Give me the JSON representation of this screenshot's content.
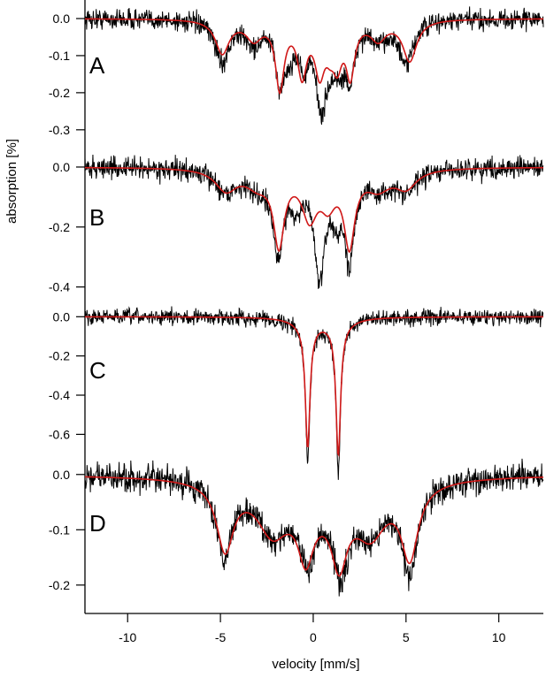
{
  "chart_data": {
    "type": "line",
    "xlabel": "velocity [mm/s]",
    "ylabel": "absorption [%]",
    "xlim": [
      -12.3,
      12.4
    ],
    "xticks": [
      -10,
      -5,
      0,
      5,
      10
    ],
    "xtick_labels": [
      "-10",
      "-5",
      "0",
      "5",
      "10"
    ],
    "grid": false,
    "colors": {
      "data": "#000000",
      "fit": "#d01818"
    },
    "panels": [
      {
        "label": "A",
        "ylim": [
          -0.36,
          0.05
        ],
        "yticks": [
          0.0,
          -0.1,
          -0.2,
          -0.3
        ],
        "ytick_labels": [
          "0.0",
          "-0.1",
          "-0.2",
          "-0.3"
        ],
        "noise": 0.02,
        "fit_lines": [
          {
            "c": -4.9,
            "w": 0.45,
            "d": 0.09
          },
          {
            "c": -3.2,
            "w": 0.5,
            "d": 0.05
          },
          {
            "c": -1.8,
            "w": 0.28,
            "d": 0.18
          },
          {
            "c": -0.6,
            "w": 0.3,
            "d": 0.14
          },
          {
            "c": 0.35,
            "w": 0.32,
            "d": 0.13
          },
          {
            "c": 0.9,
            "w": 0.3,
            "d": 0.05
          },
          {
            "c": 1.3,
            "w": 0.3,
            "d": 0.1
          },
          {
            "c": 2.0,
            "w": 0.28,
            "d": 0.14
          },
          {
            "c": 3.5,
            "w": 0.5,
            "d": 0.05
          },
          {
            "c": 5.2,
            "w": 0.45,
            "d": 0.11
          }
        ],
        "data_lines": [
          {
            "c": -4.9,
            "w": 0.45,
            "d": 0.11
          },
          {
            "c": -3.2,
            "w": 0.5,
            "d": 0.06
          },
          {
            "c": -1.8,
            "w": 0.28,
            "d": 0.15
          },
          {
            "c": -1.3,
            "w": 0.35,
            "d": 0.07
          },
          {
            "c": -0.5,
            "w": 0.32,
            "d": 0.1
          },
          {
            "c": 0.45,
            "w": 0.35,
            "d": 0.22
          },
          {
            "c": 1.0,
            "w": 0.3,
            "d": 0.06
          },
          {
            "c": 1.45,
            "w": 0.3,
            "d": 0.09
          },
          {
            "c": 2.0,
            "w": 0.28,
            "d": 0.14
          },
          {
            "c": 3.5,
            "w": 0.5,
            "d": 0.05
          },
          {
            "c": 5.0,
            "w": 0.45,
            "d": 0.12
          }
        ]
      },
      {
        "label": "B",
        "ylim": [
          -0.46,
          0.05
        ],
        "yticks": [
          0.0,
          -0.2,
          -0.4
        ],
        "ytick_labels": [
          "0.0",
          "-0.2",
          "-0.4"
        ],
        "noise": 0.025,
        "fit_lines": [
          {
            "c": -4.7,
            "w": 0.7,
            "d": 0.07
          },
          {
            "c": -3.0,
            "w": 0.8,
            "d": 0.05
          },
          {
            "c": -1.85,
            "w": 0.35,
            "d": 0.24
          },
          {
            "c": -0.2,
            "w": 0.5,
            "d": 0.15
          },
          {
            "c": 0.8,
            "w": 0.5,
            "d": 0.1
          },
          {
            "c": 1.95,
            "w": 0.35,
            "d": 0.24
          },
          {
            "c": 3.5,
            "w": 0.8,
            "d": 0.06
          },
          {
            "c": 5.0,
            "w": 0.7,
            "d": 0.06
          }
        ],
        "data_lines": [
          {
            "c": -4.7,
            "w": 0.7,
            "d": 0.07
          },
          {
            "c": -3.0,
            "w": 0.8,
            "d": 0.05
          },
          {
            "c": -1.9,
            "w": 0.32,
            "d": 0.27
          },
          {
            "c": -0.9,
            "w": 0.4,
            "d": 0.1
          },
          {
            "c": 0.35,
            "w": 0.35,
            "d": 0.34
          },
          {
            "c": 1.3,
            "w": 0.35,
            "d": 0.12
          },
          {
            "c": 1.95,
            "w": 0.3,
            "d": 0.27
          },
          {
            "c": 3.5,
            "w": 0.8,
            "d": 0.06
          },
          {
            "c": 5.0,
            "w": 0.7,
            "d": 0.07
          }
        ]
      },
      {
        "label": "C",
        "ylim": [
          -0.72,
          0.06
        ],
        "yticks": [
          0.0,
          -0.2,
          -0.4,
          -0.6
        ],
        "ytick_labels": [
          "0.0",
          "-0.2",
          "-0.4",
          "-0.6"
        ],
        "noise": 0.028,
        "fit_lines": [
          {
            "c": -0.3,
            "w": 0.15,
            "d": 0.62
          },
          {
            "c": 1.35,
            "w": 0.15,
            "d": 0.66
          },
          {
            "c": -0.3,
            "w": 0.8,
            "d": 0.04
          },
          {
            "c": 1.35,
            "w": 0.8,
            "d": 0.04
          }
        ],
        "data_lines": [
          {
            "c": -0.3,
            "w": 0.14,
            "d": 0.68
          },
          {
            "c": 1.35,
            "w": 0.14,
            "d": 0.72
          },
          {
            "c": -0.3,
            "w": 0.8,
            "d": 0.05
          },
          {
            "c": 1.35,
            "w": 0.8,
            "d": 0.05
          }
        ]
      },
      {
        "label": "D",
        "ylim": [
          -0.245,
          0.03
        ],
        "yticks": [
          0.0,
          -0.1,
          -0.2
        ],
        "ytick_labels": [
          "0.0",
          "-0.1",
          "-0.2"
        ],
        "noise": 0.018,
        "fit_lines": [
          {
            "c": -4.75,
            "w": 0.55,
            "d": 0.12
          },
          {
            "c": -2.2,
            "w": 1.0,
            "d": 0.08
          },
          {
            "c": -0.4,
            "w": 0.5,
            "d": 0.1
          },
          {
            "c": 1.4,
            "w": 0.5,
            "d": 0.11
          },
          {
            "c": 3.1,
            "w": 1.0,
            "d": 0.08
          },
          {
            "c": 5.2,
            "w": 0.55,
            "d": 0.13
          },
          {
            "c": 0.5,
            "w": 3.0,
            "d": 0.04
          }
        ],
        "data_lines": [
          {
            "c": -4.8,
            "w": 0.5,
            "d": 0.13
          },
          {
            "c": -2.2,
            "w": 1.0,
            "d": 0.08
          },
          {
            "c": -0.3,
            "w": 0.5,
            "d": 0.1
          },
          {
            "c": 1.5,
            "w": 0.5,
            "d": 0.12
          },
          {
            "c": 3.1,
            "w": 1.0,
            "d": 0.07
          },
          {
            "c": 5.2,
            "w": 0.5,
            "d": 0.16
          },
          {
            "c": 0.5,
            "w": 3.0,
            "d": 0.04
          }
        ]
      }
    ]
  }
}
